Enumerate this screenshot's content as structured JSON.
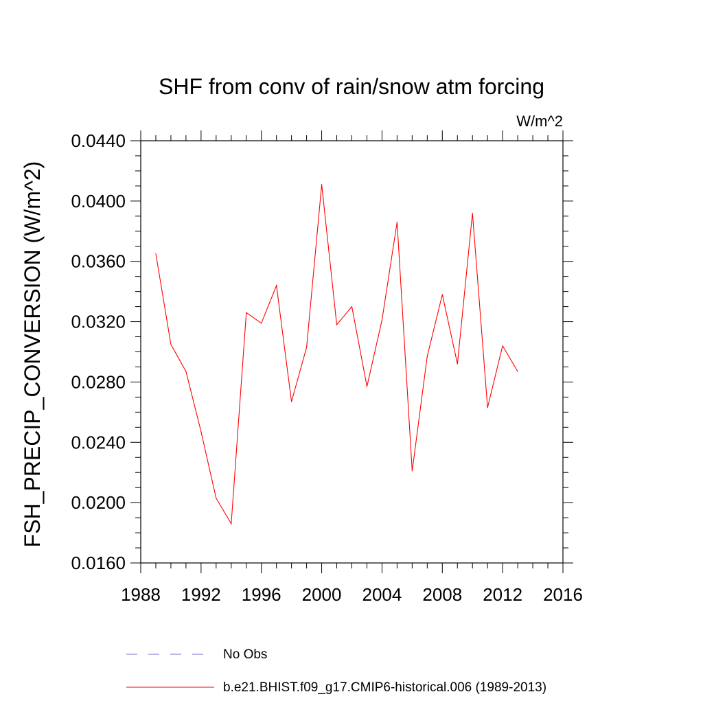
{
  "chart_data": {
    "type": "line",
    "title": "SHF from conv of rain/snow atm forcing",
    "units_label": "W/m^2",
    "xlabel": "",
    "ylabel": "FSH_PRECIP_CONVERSION  (W/m^2)",
    "xlim": [
      1988,
      2016
    ],
    "ylim": [
      0.016,
      0.044
    ],
    "x_ticks": [
      1988,
      1992,
      1996,
      2000,
      2004,
      2008,
      2012,
      2016
    ],
    "x_tick_labels": [
      "1988",
      "1992",
      "1996",
      "2000",
      "2004",
      "2008",
      "2012",
      "2016"
    ],
    "y_ticks": [
      0.016,
      0.02,
      0.024,
      0.028,
      0.032,
      0.036,
      0.04,
      0.044
    ],
    "y_tick_labels": [
      "0.0160",
      "0.0200",
      "0.0240",
      "0.0280",
      "0.0320",
      "0.0360",
      "0.0400",
      "0.0440"
    ],
    "grid": false,
    "legend_position": "bottom",
    "series": [
      {
        "name": "b.e21.BHIST.f09_g17.CMIP6-historical.006 (1989-2013)",
        "color": "#ff0000",
        "style": "solid",
        "x": [
          1989,
          1990,
          1991,
          1992,
          1993,
          1994,
          1995,
          1996,
          1997,
          1998,
          1999,
          2000,
          2001,
          2002,
          2003,
          2004,
          2005,
          2006,
          2007,
          2008,
          2009,
          2010,
          2011,
          2012,
          2013
        ],
        "y": [
          0.0365,
          0.0305,
          0.0287,
          0.0247,
          0.0203,
          0.0186,
          0.0326,
          0.0319,
          0.0344,
          0.0267,
          0.0303,
          0.0411,
          0.0318,
          0.033,
          0.0277,
          0.0321,
          0.0386,
          0.0221,
          0.0297,
          0.0338,
          0.0292,
          0.0392,
          0.0263,
          0.0304,
          0.0287
        ]
      }
    ],
    "legend": [
      {
        "label": "No Obs",
        "color": "#7070c8",
        "style": "dashed"
      },
      {
        "label": "b.e21.BHIST.f09_g17.CMIP6-historical.006 (1989-2013)",
        "color": "#ff0000",
        "style": "solid"
      }
    ]
  }
}
